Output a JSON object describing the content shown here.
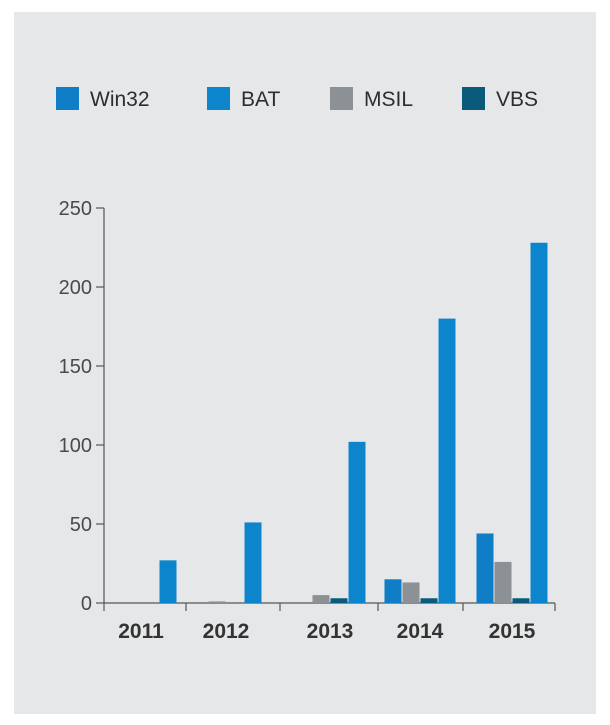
{
  "chart_data": {
    "type": "bar",
    "title": "",
    "xlabel": "",
    "ylabel": "",
    "categories": [
      "2011",
      "2012",
      "2013",
      "2014",
      "2015"
    ],
    "series": [
      {
        "name": "Win32",
        "color": "#0f7ec6",
        "values": [
          0,
          0,
          0,
          15,
          44
        ]
      },
      {
        "name": "MSIL",
        "color": "#8c9196",
        "values": [
          0,
          1,
          5,
          13,
          26
        ]
      },
      {
        "name": "VBS",
        "color": "#0a5a7c",
        "values": [
          0,
          0,
          3,
          3,
          3
        ]
      },
      {
        "name": "BAT",
        "color": "#0d85cc",
        "values": [
          27,
          51,
          102,
          180,
          228
        ]
      }
    ],
    "legend": [
      "Win32",
      "BAT",
      "MSIL",
      "VBS"
    ],
    "yticks": [
      "0",
      "50",
      "100",
      "150",
      "200",
      "250"
    ],
    "ylim": [
      0,
      250
    ],
    "grid": false,
    "legend_position": "top"
  }
}
